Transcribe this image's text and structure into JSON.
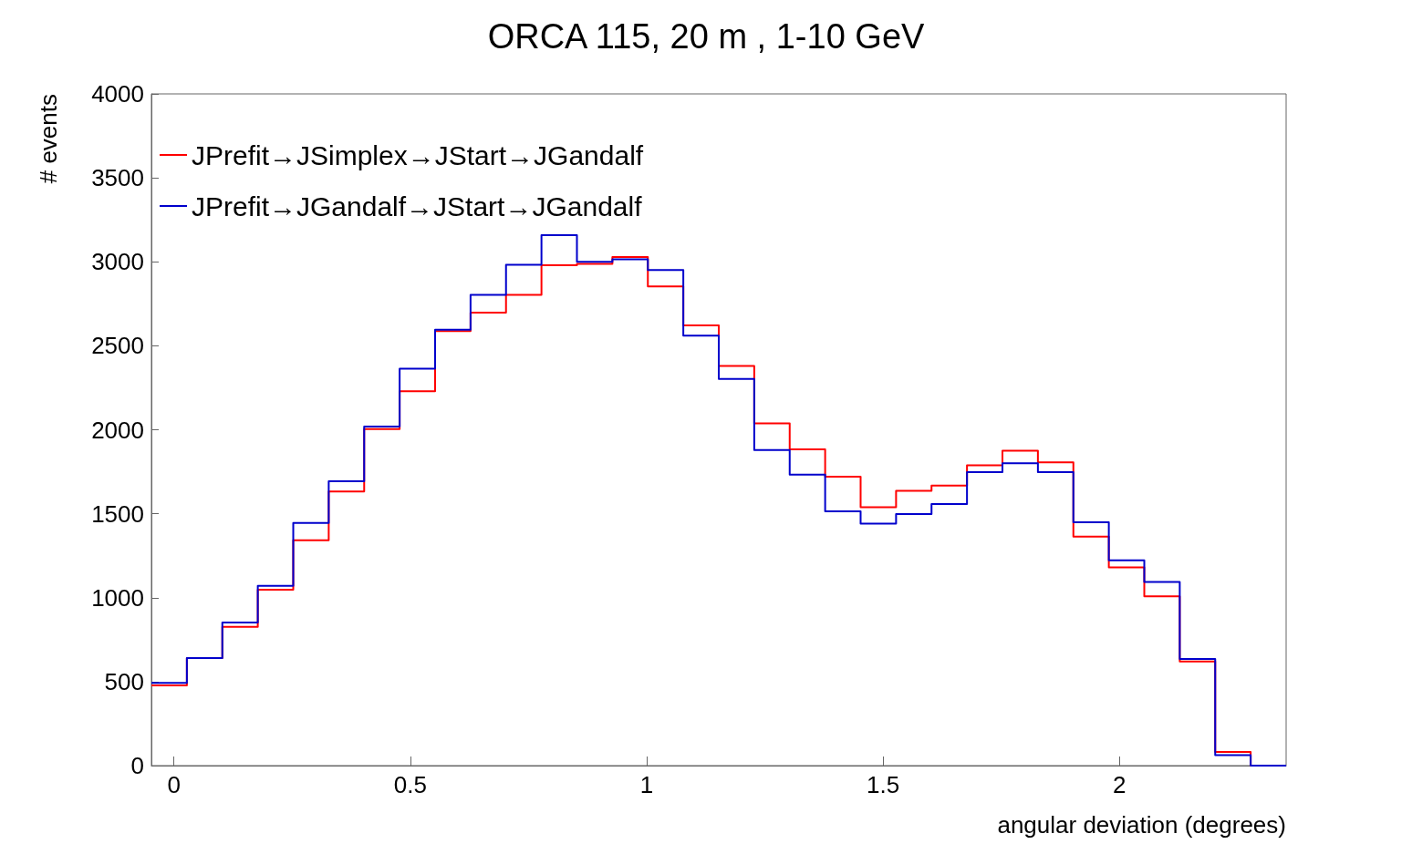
{
  "chart_data": {
    "type": "histogram",
    "title": "ORCA 115, 20 m , 1-10 GeV",
    "xlabel": "angular deviation (degrees)",
    "ylabel": "# events",
    "bins": [
      -0.0475,
      0.0275,
      0.1025,
      0.1775,
      0.2525,
      0.3275,
      0.4025,
      0.4775,
      0.5525,
      0.6275,
      0.7025,
      0.7775,
      0.8525,
      0.9275,
      1.0025,
      1.0775,
      1.1525,
      1.2275,
      1.3025,
      1.3775,
      1.4525,
      1.5275,
      1.6025,
      1.6775,
      1.7525,
      1.8275,
      1.9025,
      1.9775,
      2.0525,
      2.1275,
      2.2025,
      2.2775,
      2.3525
    ],
    "series": [
      {
        "name": "JPrefit→JSimplex→JStart→JGandalf",
        "color": "#ff0000",
        "values": [
          478,
          640,
          826,
          1047,
          1342,
          1632,
          2004,
          2229,
          2588,
          2698,
          2803,
          2979,
          2988,
          3028,
          2854,
          2622,
          2380,
          2038,
          1883,
          1720,
          1539,
          1637,
          1668,
          1788,
          1875,
          1806,
          1364,
          1180,
          1008,
          620,
          81,
          0
        ]
      },
      {
        "name": "JPrefit→JGandalf→JStart→JGandalf",
        "color": "#0000cc",
        "values": [
          493,
          640,
          852,
          1071,
          1445,
          1694,
          2019,
          2364,
          2595,
          2803,
          2983,
          3159,
          3000,
          3015,
          2951,
          2560,
          2302,
          1879,
          1733,
          1514,
          1441,
          1498,
          1558,
          1748,
          1800,
          1748,
          1449,
          1223,
          1093,
          635,
          63,
          0
        ]
      }
    ],
    "xlim": [
      -0.0475,
      2.3525
    ],
    "xticks": [
      0,
      0.5,
      1,
      1.5,
      2
    ],
    "ylim": [
      0,
      4000
    ],
    "yticks": [
      0,
      500,
      1000,
      1500,
      2000,
      2500,
      3000,
      3500,
      4000
    ],
    "grid": false,
    "legend": "top left"
  }
}
